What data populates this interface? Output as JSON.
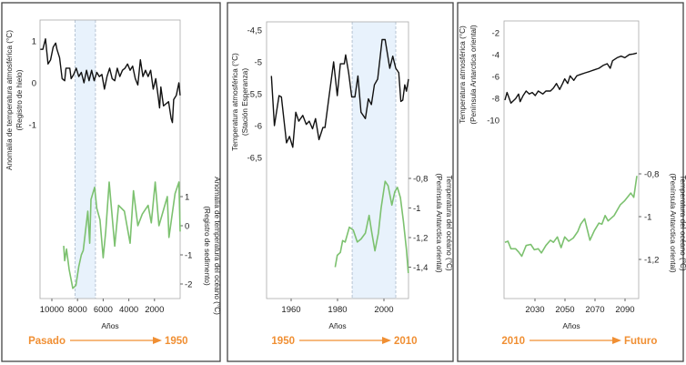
{
  "colors": {
    "air": "#111111",
    "ocean": "#7cc16f",
    "shade": "#e8f2fc",
    "shade_edge": "#a9b8c8",
    "accent": "#f08f33",
    "frame": "#444444"
  },
  "chart_data": [
    {
      "type": "line",
      "xlabel": "Años",
      "x_reversed": true,
      "xlim": [
        10900,
        0
      ],
      "x_ticks": [
        10000,
        8000,
        6000,
        4000,
        2000
      ],
      "x_tick_labels": [
        "10000",
        "8000",
        "6000",
        "4000",
        "2000"
      ],
      "shaded_range": [
        8200,
        6600
      ],
      "left_axis": {
        "title": [
          "Anomalía de temperatura atmosférica (°C)",
          "(Registro de hielo)"
        ],
        "ticks": [
          1,
          0,
          -1
        ],
        "tick_labels": [
          "1",
          "0",
          "-1"
        ]
      },
      "right_axis": {
        "title": [
          "Anomalía de temperatura del océano (°C)",
          "(Registro de sedimento)"
        ],
        "ticks": [
          1,
          0,
          -1,
          -2
        ],
        "tick_labels": [
          "1",
          "0",
          "-1",
          "-2"
        ]
      },
      "era": {
        "from": "Pasado",
        "to": "1950"
      },
      "series": [
        {
          "axis": "left",
          "color": "#111111",
          "x": [
            10900,
            10700,
            10500,
            10300,
            10100,
            9900,
            9700,
            9600,
            9400,
            9200,
            9000,
            8900,
            8600,
            8500,
            8300,
            8100,
            7900,
            7700,
            7500,
            7300,
            7100,
            6900,
            6700,
            6500,
            6300,
            6100,
            5900,
            5700,
            5500,
            5300,
            5100,
            4900,
            4700,
            4500,
            4300,
            4100,
            3900,
            3700,
            3500,
            3300,
            3100,
            2900,
            2700,
            2500,
            2300,
            2100,
            1900,
            1700,
            1600,
            1500,
            1300,
            1100,
            900,
            700,
            600,
            500,
            300,
            100,
            0
          ],
          "y": [
            0.8,
            0.8,
            1.05,
            0.45,
            0.55,
            0.85,
            0.95,
            0.8,
            0.6,
            0.1,
            0.05,
            0.35,
            0.35,
            0.1,
            0.2,
            0.35,
            0.15,
            0.25,
            0.0,
            0.3,
            0.05,
            0.3,
            0.05,
            0.25,
            0.15,
            0.2,
            -0.15,
            0.15,
            0.35,
            0.1,
            0.05,
            0.35,
            0.15,
            0.3,
            0.35,
            0.45,
            0.3,
            0.4,
            0.1,
            -0.05,
            0.55,
            0.15,
            0.3,
            0.15,
            0.3,
            -0.15,
            0.1,
            -0.35,
            -0.6,
            -0.1,
            -0.55,
            -0.5,
            -0.45,
            -0.85,
            -0.95,
            -0.4,
            -0.3,
            0.0,
            -0.3
          ]
        },
        {
          "axis": "right",
          "color": "#7cc16f",
          "x": [
            9080,
            9000,
            8860,
            8650,
            8370,
            8130,
            7900,
            7700,
            7550,
            7200,
            7050,
            6950,
            6670,
            6500,
            6250,
            6000,
            5800,
            5530,
            5100,
            4800,
            4350,
            3900,
            3640,
            3300,
            2950,
            2500,
            2250,
            1940,
            1650,
            1000,
            870,
            400,
            90,
            0
          ],
          "y": [
            -0.69,
            -1.2,
            -0.8,
            -1.5,
            -2.15,
            -2.05,
            -1.4,
            -1.0,
            -0.85,
            0.5,
            -0.6,
            0.9,
            1.32,
            0.6,
            0.2,
            -1.1,
            -0.2,
            1.5,
            -0.7,
            0.7,
            0.5,
            -0.6,
            1.2,
            0.0,
            0.4,
            0.7,
            0.1,
            1.5,
            0.0,
            1.0,
            -0.4,
            1.1,
            1.5,
            -0.2
          ]
        }
      ]
    },
    {
      "type": "line",
      "xlabel": "Años",
      "xlim": [
        1949.4,
        2010.6
      ],
      "x_ticks": [
        1960,
        1980,
        2000
      ],
      "x_tick_labels": [
        "1960",
        "1980",
        "2000"
      ],
      "shaded_range": [
        1986.3,
        2005.1
      ],
      "left_axis": {
        "title": [
          "Temperatura atmosférica (°C)",
          "(Stación Esperanza)"
        ],
        "ticks": [
          -4.5,
          -5,
          -5.5,
          -6,
          -6.5
        ],
        "tick_labels": [
          "-4,5",
          "-5",
          "-5,5",
          "-6",
          "-6,5"
        ]
      },
      "right_axis": {
        "title": [
          "Temperatura del océano (°C)",
          "(Península Antarctica oriental)"
        ],
        "ticks": [
          -0.8,
          -1,
          -1.2,
          -1.4
        ],
        "tick_labels": [
          "-0,8",
          "-1",
          "-1,2",
          "-1,4"
        ]
      },
      "era": {
        "from": "1950",
        "to": "2010"
      },
      "series": [
        {
          "axis": "left",
          "color": "#111111",
          "x": [
            1951.5,
            1952.8,
            1954.8,
            1955.8,
            1958.0,
            1959.3,
            1960.7,
            1962,
            1963.3,
            1965,
            1966.5,
            1967.8,
            1969.2,
            1970.5,
            1972,
            1973.7,
            1974.6,
            1976.3,
            1978.3,
            1979.9,
            1981.2,
            1982.9,
            1983.5,
            1984.8,
            1986.1,
            1987.5,
            1988.8,
            1990.1,
            1992,
            1993.3,
            1994.6,
            1995.9,
            1997.3,
            1999.2,
            2000.5,
            2002.5,
            2003.8,
            2005.1,
            2006.4,
            2007.3,
            2008.1,
            2009,
            2009.7,
            2010.6
          ],
          "y": [
            -5.22,
            -6.0,
            -5.53,
            -5.55,
            -6.27,
            -6.17,
            -6.34,
            -5.79,
            -5.93,
            -5.84,
            -5.98,
            -5.93,
            -6.05,
            -5.89,
            -6.22,
            -6.03,
            -6.03,
            -5.55,
            -5.0,
            -5.53,
            -5.03,
            -5.03,
            -4.89,
            -5.17,
            -5.55,
            -5.55,
            -5.22,
            -5.79,
            -5.89,
            -5.58,
            -5.67,
            -5.36,
            -5.27,
            -4.65,
            -4.65,
            -5.1,
            -4.91,
            -5.1,
            -5.17,
            -5.62,
            -5.6,
            -5.36,
            -5.46,
            -5.27
          ]
        },
        {
          "axis": "right",
          "color": "#7cc16f",
          "x": [
            1979,
            1979.9,
            1981.2,
            1982.2,
            1983.3,
            1985.1,
            1986.8,
            1988.5,
            1990.1,
            1992,
            1993.6,
            1994.6,
            1996.1,
            1997.6,
            1998.8,
            2000.5,
            2001.8,
            2003.4,
            2004.7,
            2005.8,
            2007.1,
            2008.4,
            2009.7,
            2010.5
          ],
          "y": [
            -1.4,
            -1.32,
            -1.3,
            -1.22,
            -1.23,
            -1.13,
            -1.15,
            -1.23,
            -1.21,
            -1.17,
            -1.05,
            -1.15,
            -1.29,
            -1.17,
            -1.0,
            -0.82,
            -0.85,
            -0.98,
            -0.89,
            -0.86,
            -0.93,
            -1.09,
            -1.28,
            -1.44
          ]
        }
      ]
    },
    {
      "type": "line",
      "xlabel": "Años",
      "xlim": [
        2009.4,
        2099
      ],
      "x_ticks": [
        2030,
        2050,
        2070,
        2090
      ],
      "x_tick_labels": [
        "2030",
        "2050",
        "2070",
        "2090"
      ],
      "left_axis": {
        "title": [
          "Temperatura atmosférica (°C)",
          "(Península Antarctica oriental)"
        ],
        "ticks": [
          -2,
          -4,
          -6,
          -8,
          -10
        ],
        "tick_labels": [
          "-2",
          "-4",
          "-6",
          "-8",
          "-10"
        ]
      },
      "right_axis": {
        "title": [
          "Temperatura del océano (°C)",
          "(Península Antarctica oriental)"
        ],
        "ticks": [
          -0.8,
          -1,
          -1.2
        ],
        "tick_labels": [
          "-0,8",
          "-1",
          "-1,2"
        ]
      },
      "era": {
        "from": "2010",
        "to": "Futuro"
      },
      "series": [
        {
          "axis": "left",
          "color": "#111111",
          "x": [
            2010,
            2011.4,
            2014,
            2017.1,
            2019.1,
            2020.1,
            2022.1,
            2024.1,
            2026.2,
            2028.2,
            2030.2,
            2032.2,
            2035.3,
            2037.3,
            2040.3,
            2042.3,
            2044.3,
            2046.4,
            2048.4,
            2049.8,
            2051.8,
            2053.4,
            2055.9,
            2057.9,
            2060.5,
            2063.5,
            2066.6,
            2069.6,
            2072.6,
            2075.7,
            2078.1,
            2080.1,
            2081.7,
            2084.7,
            2087.4,
            2089.8,
            2092.8,
            2095.5,
            2097.9
          ],
          "y": [
            -8.17,
            -7.47,
            -8.44,
            -8.03,
            -7.61,
            -8.31,
            -7.75,
            -7.33,
            -7.61,
            -7.47,
            -7.75,
            -7.33,
            -7.61,
            -7.33,
            -7.33,
            -7.06,
            -6.64,
            -7.19,
            -6.64,
            -6.22,
            -6.64,
            -5.94,
            -6.36,
            -5.94,
            -5.81,
            -5.67,
            -5.53,
            -5.39,
            -5.25,
            -4.97,
            -4.83,
            -5.25,
            -4.56,
            -4.28,
            -4.14,
            -4.28,
            -4.0,
            -3.94,
            -3.86
          ]
        },
        {
          "axis": "right",
          "color": "#7cc16f",
          "x": [
            2010,
            2012,
            2014,
            2017.1,
            2019.1,
            2021.2,
            2024.1,
            2027.2,
            2029.6,
            2032.2,
            2034.3,
            2037.3,
            2040.3,
            2042.3,
            2044.9,
            2047.4,
            2049.8,
            2052.4,
            2055.5,
            2058.5,
            2060.5,
            2063.1,
            2066.6,
            2069.6,
            2072.6,
            2074.6,
            2076.7,
            2078.7,
            2082.7,
            2086.8,
            2089.8,
            2093.8,
            2095.8,
            2097.9
          ],
          "y": [
            -1.12,
            -1.115,
            -1.15,
            -1.15,
            -1.165,
            -1.185,
            -1.135,
            -1.13,
            -1.155,
            -1.15,
            -1.17,
            -1.135,
            -1.11,
            -1.12,
            -1.095,
            -1.145,
            -1.095,
            -1.115,
            -1.1,
            -1.07,
            -1.035,
            -1.01,
            -1.11,
            -1.065,
            -1.03,
            -1.035,
            -0.995,
            -1.02,
            -0.995,
            -0.945,
            -0.925,
            -0.89,
            -0.91,
            -0.81
          ]
        }
      ]
    }
  ]
}
